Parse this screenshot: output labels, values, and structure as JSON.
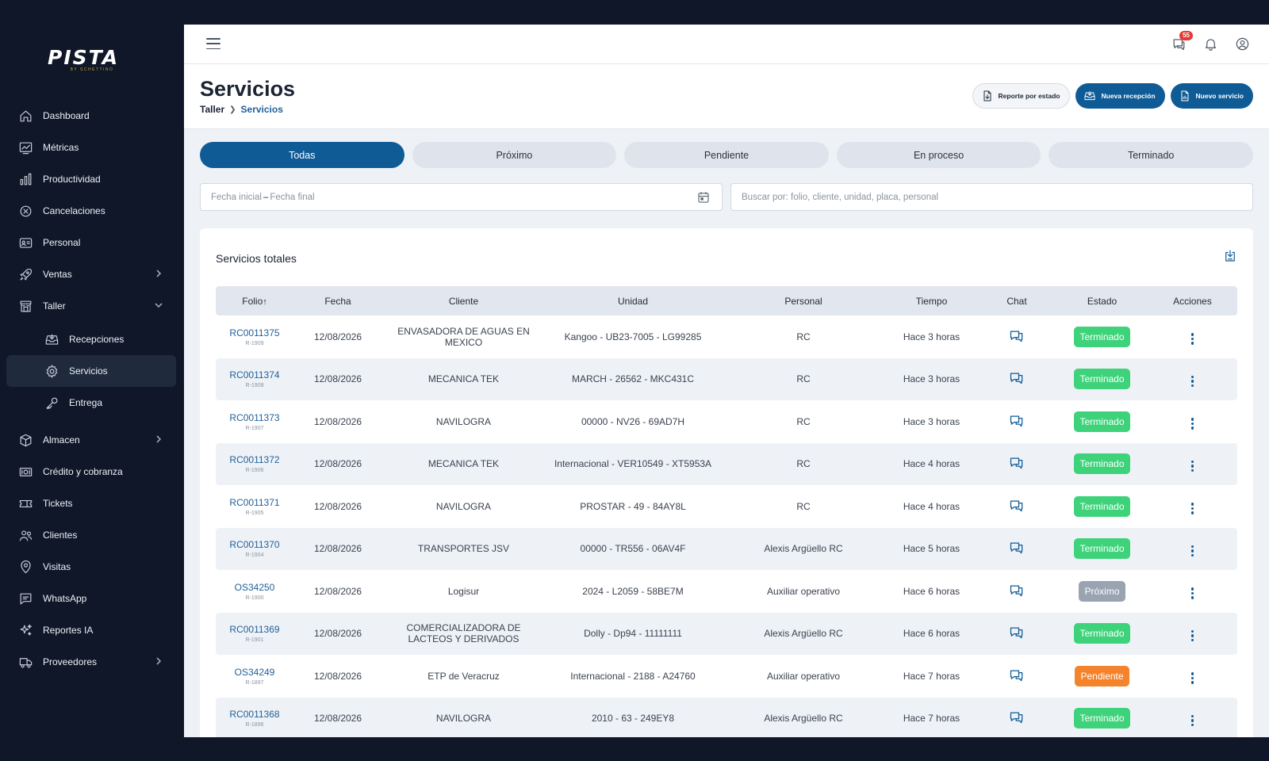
{
  "brand": {
    "name": "PISTA",
    "tagline": "BY SCHETTINO"
  },
  "sidebar": {
    "items": [
      {
        "label": "Dashboard",
        "icon": "home-icon",
        "chevron": ""
      },
      {
        "label": "Métricas",
        "icon": "chart-line-icon",
        "chevron": ""
      },
      {
        "label": "Productividad",
        "icon": "bar-chart-icon",
        "chevron": ""
      },
      {
        "label": "Cancelaciones",
        "icon": "cancel-circle-icon",
        "chevron": ""
      },
      {
        "label": "Personal",
        "icon": "id-card-icon",
        "chevron": ""
      },
      {
        "label": "Ventas",
        "icon": "rocket-icon",
        "chevron": "right"
      },
      {
        "label": "Taller",
        "icon": "store-icon",
        "chevron": "down"
      },
      {
        "label": "Recepciones",
        "icon": "inbox-icon",
        "chevron": "",
        "sub": true
      },
      {
        "label": "Servicios",
        "icon": "gear-icon",
        "chevron": "",
        "sub": true,
        "active": true
      },
      {
        "label": "Entrega",
        "icon": "key-icon",
        "chevron": "",
        "sub": true
      },
      {
        "label": "Almacen",
        "icon": "box-icon",
        "chevron": "right"
      },
      {
        "label": "Crédito y cobranza",
        "icon": "cash-icon",
        "chevron": ""
      },
      {
        "label": "Tickets",
        "icon": "ticket-icon",
        "chevron": ""
      },
      {
        "label": "Clientes",
        "icon": "users-icon",
        "chevron": ""
      },
      {
        "label": "Visitas",
        "icon": "map-pin-icon",
        "chevron": ""
      },
      {
        "label": "WhatsApp",
        "icon": "message-icon",
        "chevron": ""
      },
      {
        "label": "Reportes IA",
        "icon": "sparkles-icon",
        "chevron": ""
      },
      {
        "label": "Proveedores",
        "icon": "truck-icon",
        "chevron": "right"
      }
    ]
  },
  "topbar": {
    "chat_badge": "55",
    "icons": [
      "chat-icon",
      "bell-icon",
      "user-circle-icon"
    ]
  },
  "header": {
    "title": "Servicios",
    "breadcrumb": [
      "Taller",
      "Servicios"
    ],
    "actions": {
      "report": "Reporte por estado",
      "new_reception": "Nueva recepción",
      "new_service": "Nuevo servicio"
    }
  },
  "tabs": [
    "Todas",
    "Próximo",
    "Pendiente",
    "En proceso",
    "Terminado"
  ],
  "active_tab": 0,
  "filters": {
    "date_start_placeholder": "Fecha inicial",
    "date_separator": "–",
    "date_end_placeholder": "Fecha final",
    "search_placeholder": "Buscar por: folio, cliente, unidad, placa, personal"
  },
  "card": {
    "title": "Servicios totales"
  },
  "table": {
    "columns": [
      "Folio",
      "Fecha",
      "Cliente",
      "Unidad",
      "Personal",
      "Tiempo",
      "Chat",
      "Estado",
      "Acciones"
    ],
    "sort_indicator": "↑",
    "status_colors": {
      "Terminado": "#3ed37a",
      "Próximo": "#9aa3b2",
      "Pendiente": "#f5832b"
    },
    "rows": [
      {
        "folio": "RC0011375",
        "ref": "R-1909",
        "fecha": "12/08/2026",
        "cliente": "ENVASADORA DE AGUAS EN MEXICO",
        "unidad": "Kangoo - UB23-7005 - LG99285",
        "personal": "RC",
        "tiempo": "Hace 3 horas",
        "estado": "Terminado"
      },
      {
        "folio": "RC0011374",
        "ref": "R-1908",
        "fecha": "12/08/2026",
        "cliente": "MECANICA TEK",
        "unidad": "MARCH - 26562 - MKC431C",
        "personal": "RC",
        "tiempo": "Hace 3 horas",
        "estado": "Terminado"
      },
      {
        "folio": "RC0011373",
        "ref": "R-1907",
        "fecha": "12/08/2026",
        "cliente": "NAVILOGRA",
        "unidad": "00000 - NV26 - 69AD7H",
        "personal": "RC",
        "tiempo": "Hace 3 horas",
        "estado": "Terminado"
      },
      {
        "folio": "RC0011372",
        "ref": "R-1906",
        "fecha": "12/08/2026",
        "cliente": "MECANICA TEK",
        "unidad": "Internacional - VER10549 - XT5953A",
        "personal": "RC",
        "tiempo": "Hace 4 horas",
        "estado": "Terminado"
      },
      {
        "folio": "RC0011371",
        "ref": "R-1905",
        "fecha": "12/08/2026",
        "cliente": "NAVILOGRA",
        "unidad": "PROSTAR - 49 - 84AY8L",
        "personal": "RC",
        "tiempo": "Hace 4 horas",
        "estado": "Terminado"
      },
      {
        "folio": "RC0011370",
        "ref": "R-1904",
        "fecha": "12/08/2026",
        "cliente": "TRANSPORTES JSV",
        "unidad": "00000 - TR556 - 06AV4F",
        "personal": "Alexis Argüello RC",
        "tiempo": "Hace 5 horas",
        "estado": "Terminado"
      },
      {
        "folio": "OS34250",
        "ref": "R-1900",
        "fecha": "12/08/2026",
        "cliente": "Logisur",
        "unidad": "2024 - L2059 - 58BE7M",
        "personal": "Auxiliar operativo",
        "tiempo": "Hace 6 horas",
        "estado": "Próximo"
      },
      {
        "folio": "RC0011369",
        "ref": "R-1901",
        "fecha": "12/08/2026",
        "cliente": "COMERCIALIZADORA DE LACTEOS Y DERIVADOS",
        "unidad": "Dolly - Dp94 - 11111111",
        "personal": "Alexis Argüello RC",
        "tiempo": "Hace 6 horas",
        "estado": "Terminado"
      },
      {
        "folio": "OS34249",
        "ref": "R-1897",
        "fecha": "12/08/2026",
        "cliente": "ETP de Veracruz",
        "unidad": "Internacional - 2188 - A24760",
        "personal": "Auxiliar operativo",
        "tiempo": "Hace 7 horas",
        "estado": "Pendiente"
      },
      {
        "folio": "RC0011368",
        "ref": "R-1896",
        "fecha": "12/08/2026",
        "cliente": "NAVILOGRA",
        "unidad": "2010 - 63 - 249EY8",
        "personal": "Alexis Argüello RC",
        "tiempo": "Hace 7 horas",
        "estado": "Terminado"
      }
    ]
  }
}
